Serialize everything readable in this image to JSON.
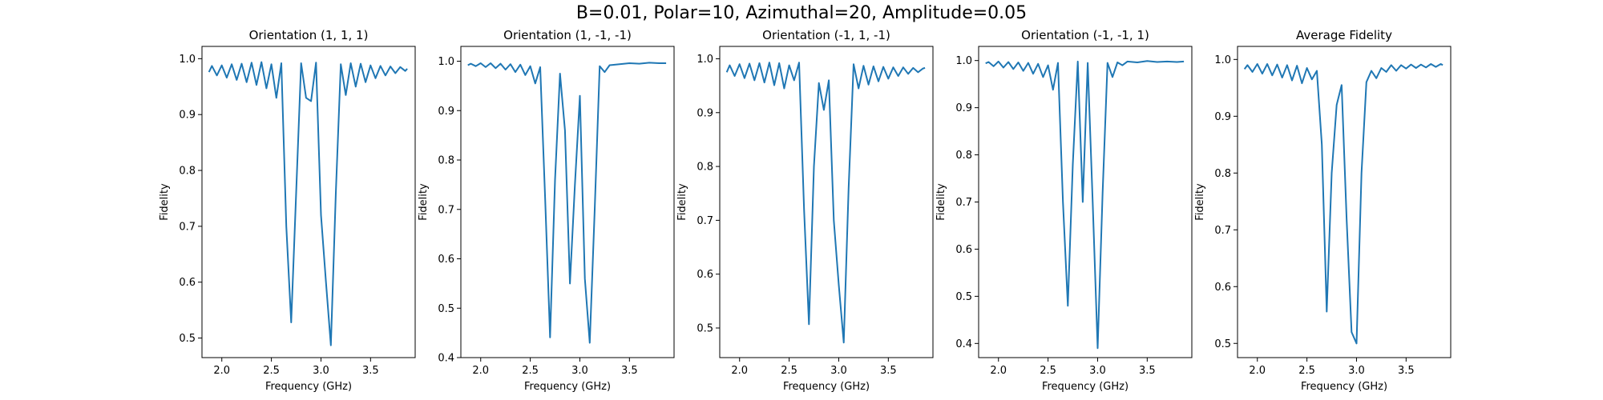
{
  "figure": {
    "suptitle": "B=0.01, Polar=10, Azimuthal=20, Amplitude=0.05"
  },
  "chart_data": [
    {
      "type": "line",
      "title": "Orientation (1, 1, 1)",
      "xlabel": "Frequency (GHz)",
      "ylabel": "Fidelity",
      "xlim": [
        1.8,
        3.95
      ],
      "ylim": [
        0.465,
        1.022
      ],
      "xticks": [
        2.0,
        2.5,
        3.0,
        3.5
      ],
      "yticks": [
        0.5,
        0.6,
        0.7,
        0.8,
        0.9,
        1.0
      ],
      "grid": false,
      "series": [
        {
          "color": "#1f77b4",
          "x": [
            1.87,
            1.9,
            1.95,
            2.0,
            2.05,
            2.1,
            2.15,
            2.2,
            2.25,
            2.3,
            2.35,
            2.4,
            2.45,
            2.5,
            2.55,
            2.6,
            2.65,
            2.7,
            2.75,
            2.8,
            2.85,
            2.9,
            2.95,
            3.0,
            3.05,
            3.1,
            3.15,
            3.2,
            3.25,
            3.3,
            3.35,
            3.4,
            3.45,
            3.5,
            3.55,
            3.6,
            3.65,
            3.7,
            3.75,
            3.8,
            3.85,
            3.87
          ],
          "y": [
            0.976,
            0.987,
            0.97,
            0.988,
            0.966,
            0.99,
            0.962,
            0.991,
            0.958,
            0.993,
            0.953,
            0.994,
            0.947,
            0.99,
            0.93,
            0.992,
            0.7,
            0.528,
            0.76,
            0.992,
            0.93,
            0.924,
            0.993,
            0.72,
            0.6,
            0.487,
            0.76,
            0.99,
            0.935,
            0.992,
            0.95,
            0.991,
            0.958,
            0.988,
            0.965,
            0.987,
            0.97,
            0.986,
            0.974,
            0.985,
            0.978,
            0.982
          ]
        }
      ]
    },
    {
      "type": "line",
      "title": "Orientation (1, -1, -1)",
      "xlabel": "Frequency (GHz)",
      "ylabel": "Fidelity",
      "xlim": [
        1.8,
        3.95
      ],
      "ylim": [
        0.4,
        1.03
      ],
      "xticks": [
        2.0,
        2.5,
        3.0,
        3.5
      ],
      "yticks": [
        0.4,
        0.5,
        0.6,
        0.7,
        0.8,
        0.9,
        1.0
      ],
      "grid": false,
      "series": [
        {
          "color": "#1f77b4",
          "x": [
            1.87,
            1.9,
            1.95,
            2.0,
            2.05,
            2.1,
            2.15,
            2.2,
            2.25,
            2.3,
            2.35,
            2.4,
            2.45,
            2.5,
            2.55,
            2.6,
            2.65,
            2.7,
            2.75,
            2.8,
            2.85,
            2.9,
            2.95,
            3.0,
            3.05,
            3.1,
            3.15,
            3.2,
            3.25,
            3.3,
            3.4,
            3.5,
            3.6,
            3.7,
            3.8,
            3.87
          ],
          "y": [
            0.992,
            0.995,
            0.99,
            0.996,
            0.988,
            0.996,
            0.986,
            0.995,
            0.983,
            0.994,
            0.978,
            0.993,
            0.972,
            0.99,
            0.955,
            0.988,
            0.72,
            0.441,
            0.76,
            0.975,
            0.86,
            0.55,
            0.75,
            0.93,
            0.56,
            0.43,
            0.7,
            0.99,
            0.978,
            0.992,
            0.994,
            0.996,
            0.995,
            0.997,
            0.996,
            0.996
          ]
        }
      ]
    },
    {
      "type": "line",
      "title": "Orientation (-1, 1, -1)",
      "xlabel": "Frequency (GHz)",
      "ylabel": "Fidelity",
      "xlim": [
        1.8,
        3.95
      ],
      "ylim": [
        0.445,
        1.023
      ],
      "xticks": [
        2.0,
        2.5,
        3.0,
        3.5
      ],
      "yticks": [
        0.5,
        0.6,
        0.7,
        0.8,
        0.9,
        1.0
      ],
      "grid": false,
      "series": [
        {
          "color": "#1f77b4",
          "x": [
            1.87,
            1.9,
            1.95,
            2.0,
            2.05,
            2.1,
            2.15,
            2.2,
            2.25,
            2.3,
            2.35,
            2.4,
            2.45,
            2.5,
            2.55,
            2.6,
            2.65,
            2.7,
            2.75,
            2.8,
            2.85,
            2.9,
            2.95,
            3.0,
            3.05,
            3.1,
            3.15,
            3.2,
            3.25,
            3.3,
            3.35,
            3.4,
            3.45,
            3.5,
            3.55,
            3.6,
            3.65,
            3.7,
            3.75,
            3.8,
            3.85,
            3.87
          ],
          "y": [
            0.975,
            0.988,
            0.968,
            0.99,
            0.964,
            0.991,
            0.96,
            0.992,
            0.956,
            0.993,
            0.951,
            0.992,
            0.945,
            0.988,
            0.96,
            0.993,
            0.72,
            0.507,
            0.8,
            0.955,
            0.905,
            0.96,
            0.7,
            0.58,
            0.473,
            0.76,
            0.99,
            0.945,
            0.987,
            0.952,
            0.986,
            0.958,
            0.985,
            0.963,
            0.984,
            0.968,
            0.984,
            0.972,
            0.983,
            0.975,
            0.982,
            0.983
          ]
        }
      ]
    },
    {
      "type": "line",
      "title": "Orientation (-1, -1, 1)",
      "xlabel": "Frequency (GHz)",
      "ylabel": "Fidelity",
      "xlim": [
        1.8,
        3.95
      ],
      "ylim": [
        0.37,
        1.03
      ],
      "xticks": [
        2.0,
        2.5,
        3.0,
        3.5
      ],
      "yticks": [
        0.4,
        0.5,
        0.6,
        0.7,
        0.8,
        0.9,
        1.0
      ],
      "grid": false,
      "series": [
        {
          "color": "#1f77b4",
          "x": [
            1.87,
            1.9,
            1.95,
            2.0,
            2.05,
            2.1,
            2.15,
            2.2,
            2.25,
            2.3,
            2.35,
            2.4,
            2.45,
            2.5,
            2.55,
            2.6,
            2.65,
            2.7,
            2.75,
            2.8,
            2.85,
            2.9,
            2.95,
            3.0,
            3.05,
            3.1,
            3.15,
            3.2,
            3.25,
            3.3,
            3.4,
            3.5,
            3.6,
            3.7,
            3.8,
            3.87
          ],
          "y": [
            0.994,
            0.997,
            0.988,
            0.998,
            0.985,
            0.997,
            0.982,
            0.996,
            0.978,
            0.995,
            0.972,
            0.993,
            0.965,
            0.99,
            0.938,
            0.995,
            0.7,
            0.48,
            0.78,
            0.998,
            0.7,
            0.995,
            0.7,
            0.39,
            0.72,
            0.995,
            0.965,
            0.996,
            0.99,
            0.998,
            0.996,
            0.999,
            0.997,
            0.998,
            0.997,
            0.998
          ]
        }
      ]
    },
    {
      "type": "line",
      "title": "Average Fidelity",
      "xlabel": "Frequency (GHz)",
      "ylabel": "Fidelity",
      "xlim": [
        1.8,
        3.95
      ],
      "ylim": [
        0.475,
        1.023
      ],
      "xticks": [
        2.0,
        2.5,
        3.0,
        3.5
      ],
      "yticks": [
        0.5,
        0.6,
        0.7,
        0.8,
        0.9,
        1.0
      ],
      "grid": false,
      "series": [
        {
          "color": "#1f77b4",
          "x": [
            1.87,
            1.9,
            1.95,
            2.0,
            2.05,
            2.1,
            2.15,
            2.2,
            2.25,
            2.3,
            2.35,
            2.4,
            2.45,
            2.5,
            2.55,
            2.6,
            2.65,
            2.7,
            2.75,
            2.8,
            2.85,
            2.9,
            2.95,
            3.0,
            3.05,
            3.1,
            3.15,
            3.2,
            3.25,
            3.3,
            3.35,
            3.4,
            3.45,
            3.5,
            3.55,
            3.6,
            3.65,
            3.7,
            3.75,
            3.8,
            3.85,
            3.87
          ],
          "y": [
            0.983,
            0.99,
            0.978,
            0.992,
            0.975,
            0.992,
            0.972,
            0.991,
            0.968,
            0.99,
            0.963,
            0.989,
            0.958,
            0.985,
            0.965,
            0.98,
            0.85,
            0.556,
            0.8,
            0.92,
            0.955,
            0.72,
            0.52,
            0.5,
            0.8,
            0.96,
            0.98,
            0.967,
            0.985,
            0.978,
            0.99,
            0.98,
            0.99,
            0.984,
            0.991,
            0.985,
            0.991,
            0.986,
            0.992,
            0.987,
            0.992,
            0.99
          ]
        }
      ]
    }
  ]
}
